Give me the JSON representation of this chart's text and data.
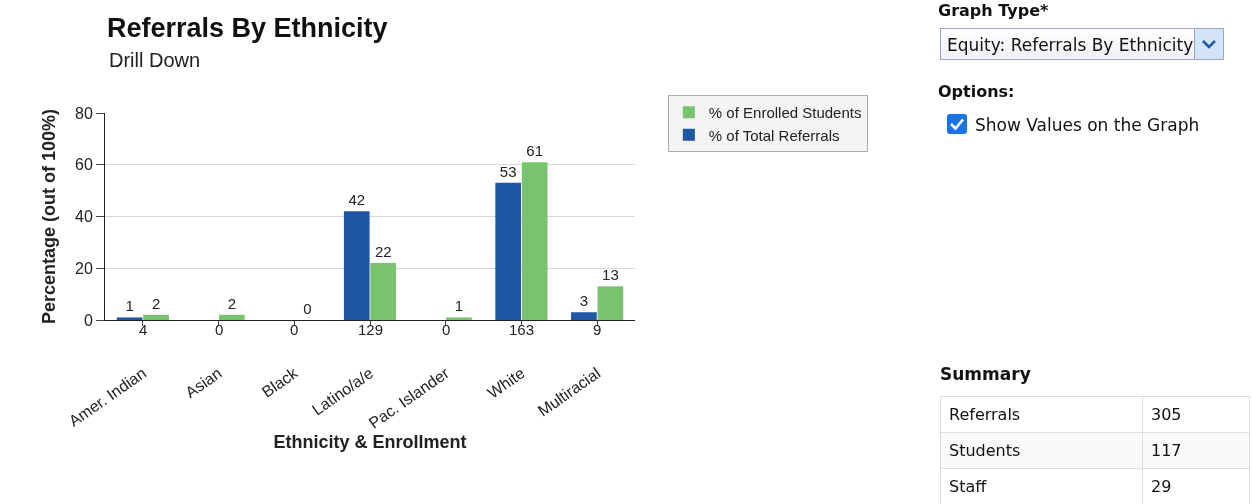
{
  "chart_data": [
    {
      "type": "bar",
      "title": "Referrals By Ethnicity",
      "subtitle": "Drill Down",
      "xlabel": "Ethnicity & Enrollment",
      "ylabel": "Percentage (out of 100%)",
      "categories": [
        "Amer. Indian",
        "Asian",
        "Black",
        "Latino/a/e",
        "Pac. Islander",
        "White",
        "Multiracial"
      ],
      "series": [
        {
          "name": "% of Total Referrals",
          "color": "#1f57a4",
          "values": [
            1,
            0,
            0,
            42,
            0,
            53,
            3
          ],
          "value_labels": [
            "1",
            null,
            null,
            "42",
            null,
            "53",
            "3"
          ]
        },
        {
          "name": "% of Enrolled Students",
          "color": "#77c36e",
          "values": [
            2,
            2,
            0,
            22,
            1,
            61,
            13
          ],
          "value_labels": [
            "2",
            "2",
            "0",
            "22",
            "1",
            "61",
            "13"
          ]
        }
      ],
      "annotations": [
        "4",
        "0",
        "0",
        "129",
        "0",
        "163",
        "9"
      ],
      "ylim": [
        0,
        80
      ],
      "yticks": [
        0,
        20,
        40,
        60,
        80
      ],
      "grid": "y",
      "legend": "top right"
    },
    {
      "type": "other",
      "title": "Summary",
      "categories": [
        "Referrals",
        "Students",
        "Staff"
      ],
      "values": [
        305,
        117,
        29
      ],
      "data_labels": true,
      "annotations": [
        "Graph Type*",
        "Equity: Referrals By Ethnicity",
        "Options:",
        "Show Values on the Graph"
      ]
    }
  ]
}
